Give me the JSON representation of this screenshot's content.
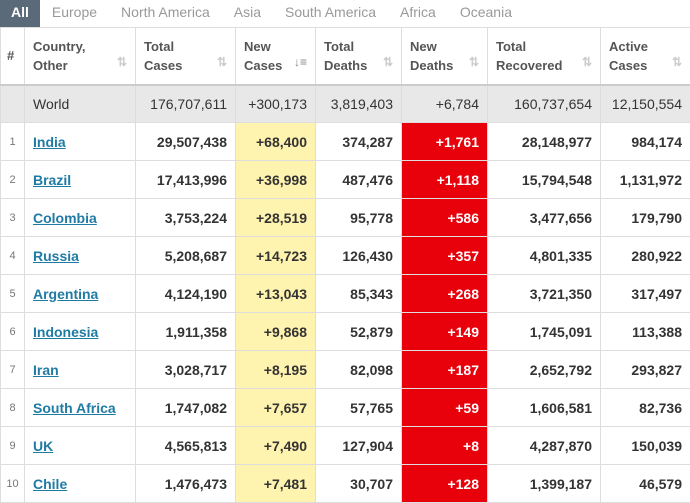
{
  "tabs": [
    "All",
    "Europe",
    "North America",
    "Asia",
    "South America",
    "Africa",
    "Oceania"
  ],
  "headers": {
    "num": "#",
    "country": [
      "Country,",
      "Other"
    ],
    "total_cases": [
      "Total",
      "Cases"
    ],
    "new_cases": [
      "New",
      "Cases"
    ],
    "total_deaths": [
      "Total",
      "Deaths"
    ],
    "new_deaths": [
      "New",
      "Deaths"
    ],
    "total_recovered": [
      "Total",
      "Recovered"
    ],
    "active_cases": [
      "Active",
      "Cases"
    ]
  },
  "world": {
    "name": "World",
    "total_cases": "176,707,611",
    "new_cases": "+300,173",
    "total_deaths": "3,819,403",
    "new_deaths": "+6,784",
    "total_recovered": "160,737,654",
    "active_cases": "12,150,554"
  },
  "rows": [
    {
      "num": "1",
      "country": "India",
      "total_cases": "29,507,438",
      "new_cases": "+68,400",
      "total_deaths": "374,287",
      "new_deaths": "+1,761",
      "total_recovered": "28,148,977",
      "active_cases": "984,174"
    },
    {
      "num": "2",
      "country": "Brazil",
      "total_cases": "17,413,996",
      "new_cases": "+36,998",
      "total_deaths": "487,476",
      "new_deaths": "+1,118",
      "total_recovered": "15,794,548",
      "active_cases": "1,131,972"
    },
    {
      "num": "3",
      "country": "Colombia",
      "total_cases": "3,753,224",
      "new_cases": "+28,519",
      "total_deaths": "95,778",
      "new_deaths": "+586",
      "total_recovered": "3,477,656",
      "active_cases": "179,790"
    },
    {
      "num": "4",
      "country": "Russia",
      "total_cases": "5,208,687",
      "new_cases": "+14,723",
      "total_deaths": "126,430",
      "new_deaths": "+357",
      "total_recovered": "4,801,335",
      "active_cases": "280,922"
    },
    {
      "num": "5",
      "country": "Argentina",
      "total_cases": "4,124,190",
      "new_cases": "+13,043",
      "total_deaths": "85,343",
      "new_deaths": "+268",
      "total_recovered": "3,721,350",
      "active_cases": "317,497"
    },
    {
      "num": "6",
      "country": "Indonesia",
      "total_cases": "1,911,358",
      "new_cases": "+9,868",
      "total_deaths": "52,879",
      "new_deaths": "+149",
      "total_recovered": "1,745,091",
      "active_cases": "113,388"
    },
    {
      "num": "7",
      "country": "Iran",
      "total_cases": "3,028,717",
      "new_cases": "+8,195",
      "total_deaths": "82,098",
      "new_deaths": "+187",
      "total_recovered": "2,652,792",
      "active_cases": "293,827"
    },
    {
      "num": "8",
      "country": "South Africa",
      "total_cases": "1,747,082",
      "new_cases": "+7,657",
      "total_deaths": "57,765",
      "new_deaths": "+59",
      "total_recovered": "1,606,581",
      "active_cases": "82,736"
    },
    {
      "num": "9",
      "country": "UK",
      "total_cases": "4,565,813",
      "new_cases": "+7,490",
      "total_deaths": "127,904",
      "new_deaths": "+8",
      "total_recovered": "4,287,870",
      "active_cases": "150,039"
    },
    {
      "num": "10",
      "country": "Chile",
      "total_cases": "1,476,473",
      "new_cases": "+7,481",
      "total_deaths": "30,707",
      "new_deaths": "+128",
      "total_recovered": "1,399,187",
      "active_cases": "46,579"
    }
  ]
}
